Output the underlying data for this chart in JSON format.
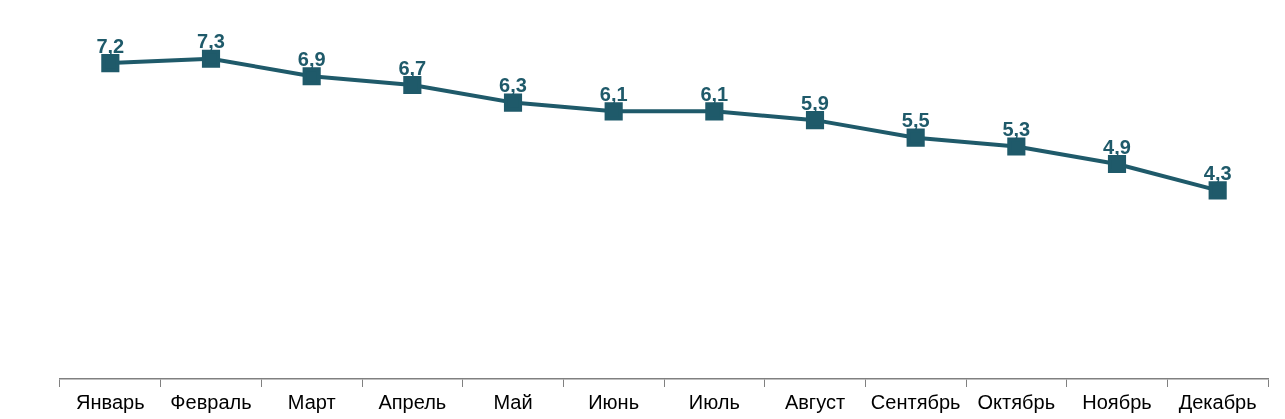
{
  "chart_data": {
    "type": "line",
    "categories": [
      "Январь",
      "Февраль",
      "Март",
      "Апрель",
      "Май",
      "Июнь",
      "Июль",
      "Август",
      "Сентябрь",
      "Октябрь",
      "Ноябрь",
      "Декабрь"
    ],
    "series": [
      {
        "color": "#1f5a6a",
        "values": [
          7.2,
          7.3,
          6.9,
          6.7,
          6.3,
          6.1,
          6.1,
          5.9,
          5.5,
          5.3,
          4.9,
          4.3
        ],
        "value_labels": [
          "7,2",
          "7,3",
          "6,9",
          "6,7",
          "6,3",
          "6,1",
          "6,1",
          "5,9",
          "5,5",
          "5,3",
          "4,9",
          "4,3"
        ]
      }
    ],
    "tick_labels": "x",
    "marker": "square",
    "line_style": "solid",
    "grid": false,
    "legend": false
  }
}
